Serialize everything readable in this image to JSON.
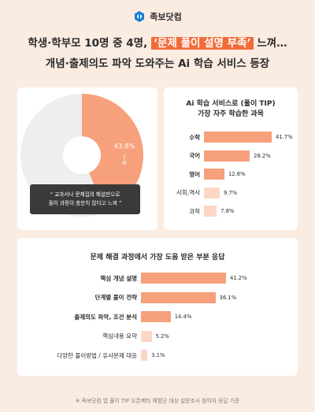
{
  "brand": {
    "name": "족보닷컴",
    "logo_color": "#1a7fd6"
  },
  "headline": {
    "line1_before": "학생·학부모 10명 중 4명, ",
    "line1_highlight": "‘문제 풀이 설명 부족’",
    "line1_after": " 느껴…",
    "line2": "개념·출제의도 파악 도와주는 Ai 학습 서비스 등장"
  },
  "colors": {
    "accent": "#f6a07c",
    "accent_light": "#fcd7c5",
    "donut_rest": "#eeeeee",
    "background": "#fbece2"
  },
  "chart_data": [
    {
      "type": "pie",
      "values": [
        43.8,
        56.2
      ],
      "labels": [
        "43.8%",
        ""
      ],
      "annotation": [
        "“ 교과서나 문제집의 해설만으로",
        "풀이 과정이 충분치 않다고 느껴 ”"
      ]
    },
    {
      "type": "bar",
      "orientation": "horizontal",
      "title": [
        "Ai 학습 서비스로 (풀이 TIP)",
        "가장 자주 학습한 과목"
      ],
      "categories": [
        "수학",
        "국어",
        "영어",
        "사회,역사",
        "과학"
      ],
      "values": [
        41.7,
        28.2,
        12.6,
        9.7,
        7.8
      ],
      "value_labels": [
        "41.7%",
        "28.2%",
        "12.6%",
        "9.7%",
        "7.8%"
      ],
      "emphasis": [
        true,
        true,
        true,
        false,
        false
      ]
    },
    {
      "type": "bar",
      "orientation": "horizontal",
      "title": [
        "문제 해결 과정에서 가장 도움 받은 부분 응답"
      ],
      "categories": [
        "핵심 개념 설명",
        "단계별 풀이 전략",
        "출제의도 파악, 조건 분석",
        "핵심내용 요약",
        "다양한 풀이방법 / 유사문제 대응"
      ],
      "values": [
        41.2,
        36.1,
        14.4,
        5.2,
        3.1
      ],
      "value_labels": [
        "41.2%",
        "36.1%",
        "14.4%",
        "5.2%",
        "3.1%"
      ],
      "emphasis": [
        true,
        true,
        true,
        false,
        false
      ]
    }
  ],
  "footer": "※ 족보닷컴 앱 풀이 TIP 오픈베타 체험단 대상 설문조사 참여자 응답 기준"
}
